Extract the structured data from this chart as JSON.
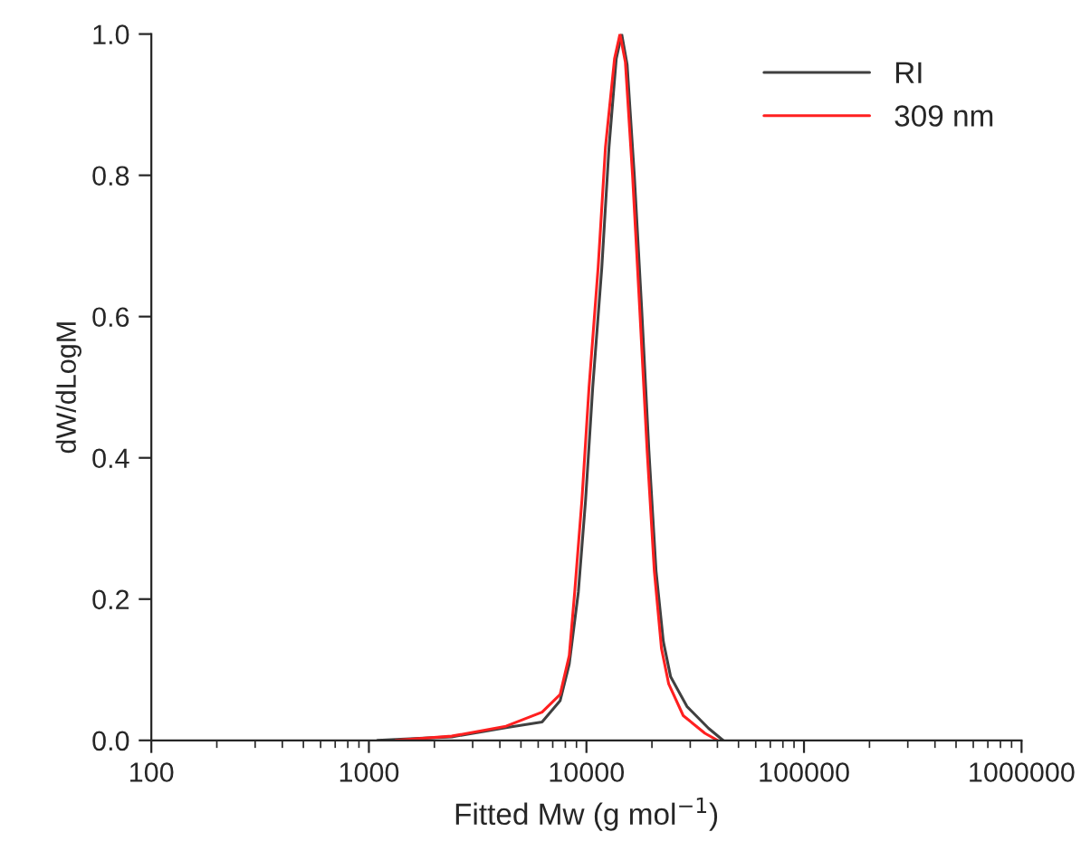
{
  "chart_data": {
    "type": "line",
    "xlabel": "Fitted Mw (g mol$^{−1}$)",
    "ylabel": "dW/dLogM",
    "log": "x",
    "xlim": [
      100,
      1000000
    ],
    "xticks": [
      100,
      1000,
      10000,
      100000,
      1000000
    ],
    "ylim": [
      0,
      1.0
    ],
    "yticks": [
      {
        "value": 0,
        "label": "0.0"
      },
      {
        "value": 0.2,
        "label": "0.2"
      },
      {
        "value": 0.4,
        "label": "0.4"
      },
      {
        "value": 0.6,
        "label": "0.6"
      },
      {
        "value": 0.8,
        "label": "0.8"
      },
      {
        "value": 1.0,
        "label": "1.0"
      }
    ],
    "grid": false,
    "legend": "top right",
    "line_style": "solid",
    "marker": "none",
    "series": [
      {
        "name": "RI",
        "color": "#404040",
        "x": [
          1095,
          2402,
          4266,
          6252,
          7568,
          8336,
          9179,
          9908,
          10690,
          11770,
          12700,
          13710,
          14520,
          15380,
          16600,
          17950,
          19370,
          20890,
          22570,
          24380,
          28970,
          36420,
          42460
        ],
        "values": [
          0,
          0.005,
          0.018,
          0.026,
          0.056,
          0.108,
          0.21,
          0.34,
          0.5,
          0.67,
          0.84,
          0.965,
          1.0,
          0.957,
          0.8,
          0.61,
          0.41,
          0.24,
          0.14,
          0.09,
          0.048,
          0.017,
          0
        ]
      },
      {
        "name": "309 nm",
        "color": "#ff2020",
        "x": [
          1327,
          2402,
          4266,
          6252,
          7568,
          8336,
          8831,
          9530,
          10280,
          11320,
          12230,
          13460,
          14260,
          15100,
          16290,
          17580,
          19010,
          20510,
          22130,
          23880,
          27860,
          35060,
          40070
        ],
        "values": [
          0,
          0.006,
          0.02,
          0.04,
          0.065,
          0.12,
          0.21,
          0.34,
          0.5,
          0.67,
          0.84,
          0.965,
          1.0,
          0.96,
          0.8,
          0.61,
          0.41,
          0.24,
          0.13,
          0.08,
          0.035,
          0.01,
          0
        ]
      }
    ]
  }
}
